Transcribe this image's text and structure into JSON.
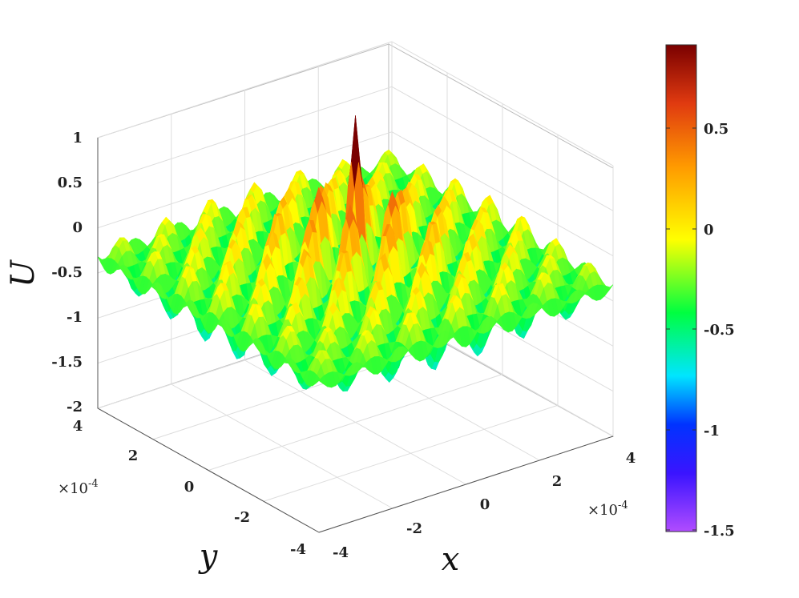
{
  "chart_data": {
    "type": "surface",
    "xlabel": "x",
    "ylabel": "y",
    "zlabel": "U",
    "x_multiplier": "×10",
    "x_multiplier_exp": "-4",
    "y_multiplier": "×10",
    "y_multiplier_exp": "-4",
    "xlim": [
      -4,
      4
    ],
    "ylim": [
      -4,
      4
    ],
    "zlim": [
      -2,
      1
    ],
    "x_ticks": [
      "-4",
      "-2",
      "0",
      "2",
      "4"
    ],
    "y_ticks": [
      "-4",
      "-2",
      "0",
      "2",
      "4"
    ],
    "z_ticks": [
      "1",
      "0.5",
      "0",
      "-0.5",
      "-1",
      "-1.5",
      "-2"
    ],
    "colorbar": {
      "colormap": "hsv-rainbow",
      "clim": [
        -1.55,
        0.92
      ],
      "ticks": [
        "0.5",
        "0",
        "-0.5",
        "-1",
        "-1.5"
      ]
    },
    "grid": true,
    "legend": "none",
    "colors": {
      "peak": "#7a0000",
      "high": "#ff6a00",
      "mid": "#ffff00",
      "zero_band": "#3fff00",
      "low_mid": "#00ffff",
      "low": "#0022ff",
      "min": "#a040ff"
    }
  }
}
